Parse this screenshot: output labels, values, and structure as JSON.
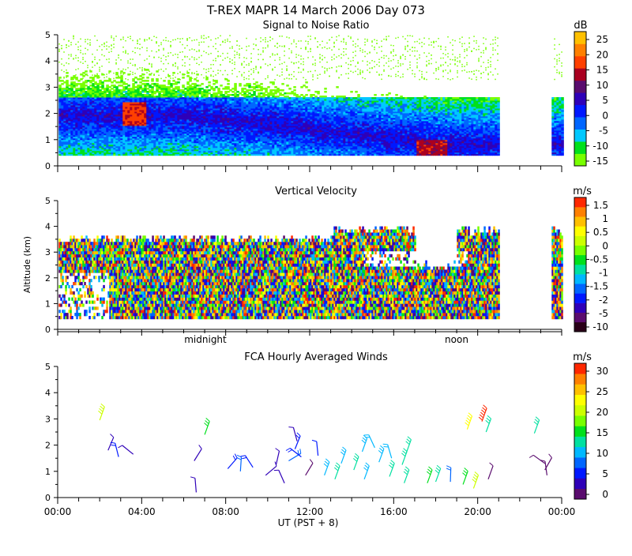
{
  "title_main": "T-REX   MAPR 14 March 2006 Day 073",
  "xaxis": {
    "ticks": [
      "00:00",
      "04:00",
      "08:00",
      "12:00",
      "16:00",
      "20:00",
      "00:00"
    ],
    "xlabel": "UT  (PST + 8)",
    "markers": [
      "midnight",
      "noon"
    ]
  },
  "ylabel": "Altitude (km)",
  "colors": {
    "scale": [
      "#2a0018",
      "#5a0c6e",
      "#2f00b8",
      "#0018ff",
      "#0066ff",
      "#00b8ff",
      "#00e0a0",
      "#00e01c",
      "#78ff00",
      "#ccff00",
      "#ffff00",
      "#ffc000",
      "#ff8000",
      "#ff2800"
    ]
  },
  "chart_data": [
    {
      "type": "heatmap",
      "title": "Signal to Noise Ratio",
      "xlabel": "UT",
      "ylabel": "Altitude (km)",
      "xlim": [
        0,
        24
      ],
      "ylim": [
        0,
        5
      ],
      "yticks": [
        "0",
        "1",
        "2",
        "3",
        "4",
        "5"
      ],
      "colorbar": {
        "unit": "dB",
        "ticks": [
          "25",
          "20",
          "15",
          "10",
          "5",
          "0",
          "-5",
          "-10",
          "-15"
        ],
        "range": [
          -17.5,
          27.5
        ]
      },
      "features": {
        "data_gap": [
          21.0,
          23.6
        ],
        "band_center_km": [
          2.6,
          1.8,
          1.3,
          0.8
        ]
      }
    },
    {
      "type": "heatmap",
      "title": "Vertical Velocity",
      "xlabel": "UT",
      "ylabel": "Altitude (km)",
      "xlim": [
        0,
        24
      ],
      "ylim": [
        0,
        5
      ],
      "yticks": [
        "0",
        "1",
        "2",
        "3",
        "4",
        "5"
      ],
      "colorbar": {
        "unit": "m/s",
        "ticks": [
          "1.5",
          "1",
          "0.5",
          "0",
          "-0.5",
          "-1",
          "-1.5",
          "-2",
          "-5",
          "-10"
        ]
      },
      "features": {
        "data_gap": [
          21.0,
          23.6
        ]
      }
    },
    {
      "type": "scatter",
      "title": "FCA Hourly Averaged Winds",
      "xlabel": "UT",
      "ylabel": "Altitude (km)",
      "xlim": [
        0,
        24
      ],
      "ylim": [
        0,
        5
      ],
      "yticks": [
        "0",
        "1",
        "2",
        "3",
        "4",
        "5"
      ],
      "colorbar": {
        "unit": "m/s",
        "ticks": [
          "30",
          "25",
          "20",
          "15",
          "10",
          "5",
          "0"
        ],
        "range": [
          0,
          32
        ]
      },
      "barbs": [
        {
          "t": 2.0,
          "z": 2.95,
          "speed": 21
        },
        {
          "t": 2.4,
          "z": 1.8,
          "speed": 6
        },
        {
          "t": 2.9,
          "z": 1.55,
          "speed": 8
        },
        {
          "t": 3.6,
          "z": 1.65,
          "speed": 5
        },
        {
          "t": 6.5,
          "z": 1.4,
          "speed": 6
        },
        {
          "t": 6.6,
          "z": 0.2,
          "speed": 5
        },
        {
          "t": 7.0,
          "z": 2.4,
          "speed": 16
        },
        {
          "t": 8.1,
          "z": 1.1,
          "speed": 9
        },
        {
          "t": 8.7,
          "z": 1.0,
          "speed": 10
        },
        {
          "t": 9.3,
          "z": 1.15,
          "speed": 9
        },
        {
          "t": 9.9,
          "z": 0.85,
          "speed": 6
        },
        {
          "t": 10.4,
          "z": 1.25,
          "speed": 5
        },
        {
          "t": 10.8,
          "z": 0.55,
          "speed": 5
        },
        {
          "t": 11.0,
          "z": 1.4,
          "speed": 10
        },
        {
          "t": 11.3,
          "z": 1.85,
          "speed": 8
        },
        {
          "t": 11.4,
          "z": 2.15,
          "speed": 6
        },
        {
          "t": 11.6,
          "z": 1.55,
          "speed": 9
        },
        {
          "t": 11.8,
          "z": 0.85,
          "speed": 3
        },
        {
          "t": 12.4,
          "z": 1.6,
          "speed": 7
        },
        {
          "t": 12.7,
          "z": 0.85,
          "speed": 13
        },
        {
          "t": 13.2,
          "z": 0.7,
          "speed": 14
        },
        {
          "t": 13.5,
          "z": 1.3,
          "speed": 13
        },
        {
          "t": 14.1,
          "z": 1.05,
          "speed": 14
        },
        {
          "t": 14.5,
          "z": 1.75,
          "speed": 13
        },
        {
          "t": 14.6,
          "z": 0.7,
          "speed": 13
        },
        {
          "t": 15.1,
          "z": 1.9,
          "speed": 12
        },
        {
          "t": 15.3,
          "z": 1.35,
          "speed": 13
        },
        {
          "t": 15.8,
          "z": 0.8,
          "speed": 15
        },
        {
          "t": 15.9,
          "z": 1.5,
          "speed": 12
        },
        {
          "t": 16.4,
          "z": 1.25,
          "speed": 15
        },
        {
          "t": 16.5,
          "z": 0.55,
          "speed": 14
        },
        {
          "t": 16.6,
          "z": 1.7,
          "speed": 14
        },
        {
          "t": 17.6,
          "z": 0.55,
          "speed": 16
        },
        {
          "t": 18.0,
          "z": 0.6,
          "speed": 14
        },
        {
          "t": 18.7,
          "z": 0.6,
          "speed": 11
        },
        {
          "t": 19.3,
          "z": 0.5,
          "speed": 16
        },
        {
          "t": 19.5,
          "z": 2.6,
          "speed": 24
        },
        {
          "t": 19.8,
          "z": 0.35,
          "speed": 21
        },
        {
          "t": 20.2,
          "z": 2.9,
          "speed": 30
        },
        {
          "t": 20.4,
          "z": 2.5,
          "speed": 15
        },
        {
          "t": 20.5,
          "z": 0.7,
          "speed": 4
        },
        {
          "t": 22.7,
          "z": 2.45,
          "speed": 14
        },
        {
          "t": 23.2,
          "z": 1.3,
          "speed": 4
        },
        {
          "t": 23.2,
          "z": 1.05,
          "speed": 4
        },
        {
          "t": 23.3,
          "z": 0.85,
          "speed": 4
        }
      ]
    }
  ]
}
